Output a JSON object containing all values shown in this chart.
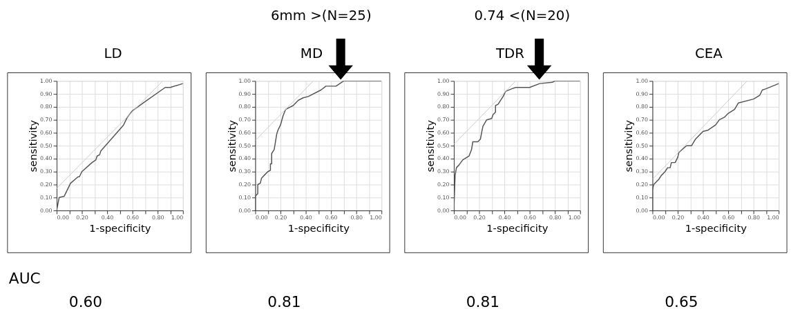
{
  "chart_data": [
    {
      "type": "line",
      "title": "LD",
      "xlabel": "1-specificity",
      "ylabel": "sensitivity",
      "xlim": [
        0,
        1
      ],
      "ylim": [
        0,
        1
      ],
      "grid": true,
      "xticks": [
        {
          "value": 0,
          "label": "0.00"
        },
        {
          "value": 0.1,
          "label": null
        },
        {
          "value": 0.2,
          "label": "0.20"
        },
        {
          "value": 0.3,
          "label": null
        },
        {
          "value": 0.4,
          "label": "0.40"
        },
        {
          "value": 0.5,
          "label": null
        },
        {
          "value": 0.6,
          "label": "0.60"
        },
        {
          "value": 0.7,
          "label": null
        },
        {
          "value": 0.8,
          "label": "0.80"
        },
        {
          "value": 0.9,
          "label": null
        },
        {
          "value": 1,
          "label": "1.00"
        }
      ],
      "yticks": [
        {
          "value": 0,
          "label": "0.00"
        },
        {
          "value": 0.1,
          "label": "0.10"
        },
        {
          "value": 0.2,
          "label": "0.20"
        },
        {
          "value": 0.3,
          "label": "0.30"
        },
        {
          "value": 0.4,
          "label": "0.40"
        },
        {
          "value": 0.5,
          "label": "0.50"
        },
        {
          "value": 0.6,
          "label": "0.60"
        },
        {
          "value": 0.7,
          "label": "0.70"
        },
        {
          "value": 0.8,
          "label": "0.80"
        },
        {
          "value": 0.9,
          "label": "0.90"
        },
        {
          "value": 1,
          "label": "1.00"
        }
      ],
      "series": [
        {
          "color": "#555555",
          "x": [
            0,
            0.02,
            0.06,
            0.1,
            0.11,
            0.17,
            0.18,
            0.2,
            0.28,
            0.31,
            0.32,
            0.34,
            0.35,
            0.45,
            0.53,
            0.56,
            0.6,
            0.7,
            0.86,
            0.9,
            1.0
          ],
          "values": [
            0,
            0.1,
            0.11,
            0.19,
            0.21,
            0.26,
            0.26,
            0.3,
            0.37,
            0.39,
            0.42,
            0.43,
            0.46,
            0.57,
            0.66,
            0.72,
            0.77,
            0.84,
            0.95,
            0.95,
            0.98
          ]
        },
        {
          "color": "#cccccc",
          "x": [
            0,
            0.84
          ],
          "values": [
            0.17,
            1.0
          ]
        }
      ],
      "annotations": [
        "AUC",
        "0.60"
      ]
    },
    {
      "type": "line",
      "title": "MD",
      "xlabel": "1-specificity",
      "ylabel": "sensitivity",
      "xlim": [
        0,
        1
      ],
      "ylim": [
        0,
        1
      ],
      "grid": true,
      "xticks": [
        {
          "value": 0,
          "label": "0.00"
        },
        {
          "value": 0.1,
          "label": null
        },
        {
          "value": 0.2,
          "label": "0.20"
        },
        {
          "value": 0.3,
          "label": null
        },
        {
          "value": 0.4,
          "label": "0.40"
        },
        {
          "value": 0.5,
          "label": null
        },
        {
          "value": 0.6,
          "label": "0.60"
        },
        {
          "value": 0.7,
          "label": null
        },
        {
          "value": 0.8,
          "label": "0.80"
        },
        {
          "value": 0.9,
          "label": null
        },
        {
          "value": 1,
          "label": "1.00"
        }
      ],
      "yticks": [
        {
          "value": 0,
          "label": "0.00"
        },
        {
          "value": 0.1,
          "label": "0.10"
        },
        {
          "value": 0.2,
          "label": "0.20"
        },
        {
          "value": 0.3,
          "label": "0.30"
        },
        {
          "value": 0.4,
          "label": "0.40"
        },
        {
          "value": 0.5,
          "label": "0.50"
        },
        {
          "value": 0.6,
          "label": "0.60"
        },
        {
          "value": 0.7,
          "label": "0.70"
        },
        {
          "value": 0.8,
          "label": "0.80"
        },
        {
          "value": 0.9,
          "label": "0.90"
        },
        {
          "value": 1,
          "label": "1.00"
        }
      ],
      "series": [
        {
          "color": "#555555",
          "x": [
            0,
            0,
            0.02,
            0.02,
            0.04,
            0.05,
            0.07,
            0.1,
            0.12,
            0.12,
            0.13,
            0.13,
            0.15,
            0.16,
            0.17,
            0.18,
            0.2,
            0.22,
            0.24,
            0.3,
            0.34,
            0.38,
            0.42,
            0.52,
            0.56,
            0.64,
            0.67,
            0.7,
            1.0
          ],
          "values": [
            0,
            0.11,
            0.13,
            0.2,
            0.21,
            0.25,
            0.27,
            0.3,
            0.31,
            0.36,
            0.36,
            0.44,
            0.47,
            0.53,
            0.59,
            0.62,
            0.66,
            0.73,
            0.78,
            0.81,
            0.85,
            0.87,
            0.88,
            0.93,
            0.96,
            0.96,
            0.98,
            1.0,
            1.0
          ]
        },
        {
          "color": "#cccccc",
          "x": [
            0,
            0.46
          ],
          "values": [
            0.54,
            1.0
          ]
        }
      ],
      "subtitle": "6mm >(N=25)",
      "annotations": [
        "0.81"
      ]
    },
    {
      "type": "line",
      "title": "TDR",
      "xlabel": "1-specificity",
      "ylabel": "sensitivity",
      "xlim": [
        0,
        1
      ],
      "ylim": [
        0,
        1
      ],
      "grid": true,
      "xticks": [
        {
          "value": 0,
          "label": "0.00"
        },
        {
          "value": 0.1,
          "label": null
        },
        {
          "value": 0.2,
          "label": "0.20"
        },
        {
          "value": 0.3,
          "label": null
        },
        {
          "value": 0.4,
          "label": "0.40"
        },
        {
          "value": 0.5,
          "label": null
        },
        {
          "value": 0.6,
          "label": "0.60"
        },
        {
          "value": 0.7,
          "label": null
        },
        {
          "value": 0.8,
          "label": "0.80"
        },
        {
          "value": 0.9,
          "label": null
        },
        {
          "value": 1,
          "label": "1.00"
        }
      ],
      "yticks": [
        {
          "value": 0,
          "label": "0.00"
        },
        {
          "value": 0.1,
          "label": "0.10"
        },
        {
          "value": 0.2,
          "label": "0.20"
        },
        {
          "value": 0.3,
          "label": "0.30"
        },
        {
          "value": 0.4,
          "label": "0.40"
        },
        {
          "value": 0.5,
          "label": "0.50"
        },
        {
          "value": 0.6,
          "label": "0.60"
        },
        {
          "value": 0.7,
          "label": "0.70"
        },
        {
          "value": 0.8,
          "label": "0.80"
        },
        {
          "value": 0.9,
          "label": "0.90"
        },
        {
          "value": 1,
          "label": "1.00"
        }
      ],
      "series": [
        {
          "color": "#555555",
          "x": [
            0,
            0.01,
            0.02,
            0.04,
            0.07,
            0.12,
            0.14,
            0.15,
            0.19,
            0.21,
            0.22,
            0.23,
            0.26,
            0.3,
            0.31,
            0.33,
            0.33,
            0.35,
            0.39,
            0.41,
            0.46,
            0.49,
            0.6,
            0.68,
            0.78,
            0.8,
            1.0
          ],
          "values": [
            0,
            0.27,
            0.33,
            0.35,
            0.39,
            0.42,
            0.47,
            0.53,
            0.53,
            0.55,
            0.6,
            0.65,
            0.7,
            0.71,
            0.74,
            0.76,
            0.81,
            0.82,
            0.88,
            0.92,
            0.94,
            0.95,
            0.95,
            0.98,
            0.99,
            1.0,
            1.0
          ]
        },
        {
          "color": "#cccccc",
          "x": [
            0,
            0.49
          ],
          "values": [
            0.51,
            1.0
          ]
        }
      ],
      "subtitle": "0.74 <(N=20)",
      "annotations": [
        "0.81"
      ]
    },
    {
      "type": "line",
      "title": "CEA",
      "xlabel": "1-specificity",
      "ylabel": "sensitivity",
      "xlim": [
        0,
        1
      ],
      "ylim": [
        0,
        1
      ],
      "grid": true,
      "xticks": [
        {
          "value": 0,
          "label": "0.00"
        },
        {
          "value": 0.1,
          "label": null
        },
        {
          "value": 0.2,
          "label": "0.20"
        },
        {
          "value": 0.3,
          "label": null
        },
        {
          "value": 0.4,
          "label": "0.40"
        },
        {
          "value": 0.5,
          "label": null
        },
        {
          "value": 0.6,
          "label": "0.60"
        },
        {
          "value": 0.7,
          "label": null
        },
        {
          "value": 0.8,
          "label": "0.80"
        },
        {
          "value": 0.9,
          "label": null
        },
        {
          "value": 1,
          "label": "1.00"
        }
      ],
      "yticks": [
        {
          "value": 0,
          "label": "0.00"
        },
        {
          "value": 0.1,
          "label": "0.10"
        },
        {
          "value": 0.2,
          "label": "0.20"
        },
        {
          "value": 0.3,
          "label": "0.30"
        },
        {
          "value": 0.4,
          "label": "0.40"
        },
        {
          "value": 0.5,
          "label": "0.50"
        },
        {
          "value": 0.6,
          "label": "0.60"
        },
        {
          "value": 0.7,
          "label": "0.70"
        },
        {
          "value": 0.8,
          "label": "0.80"
        },
        {
          "value": 0.9,
          "label": "0.90"
        },
        {
          "value": 1,
          "label": "1.00"
        }
      ],
      "series": [
        {
          "color": "#555555",
          "x": [
            0,
            0,
            0.01,
            0.03,
            0.05,
            0.07,
            0.1,
            0.12,
            0.14,
            0.15,
            0.18,
            0.2,
            0.21,
            0.27,
            0.31,
            0.34,
            0.4,
            0.44,
            0.5,
            0.53,
            0.57,
            0.6,
            0.65,
            0.68,
            0.8,
            0.85,
            0.87,
            0.9,
            1.0
          ],
          "values": [
            0,
            0.16,
            0.2,
            0.22,
            0.24,
            0.27,
            0.3,
            0.33,
            0.33,
            0.37,
            0.37,
            0.41,
            0.45,
            0.5,
            0.5,
            0.55,
            0.61,
            0.62,
            0.66,
            0.7,
            0.72,
            0.75,
            0.78,
            0.83,
            0.86,
            0.89,
            0.93,
            0.94,
            0.98
          ]
        },
        {
          "color": "#cccccc",
          "x": [
            0,
            0.75
          ],
          "values": [
            0.24,
            1.0
          ]
        }
      ],
      "annotations": [
        "0.65"
      ]
    }
  ]
}
